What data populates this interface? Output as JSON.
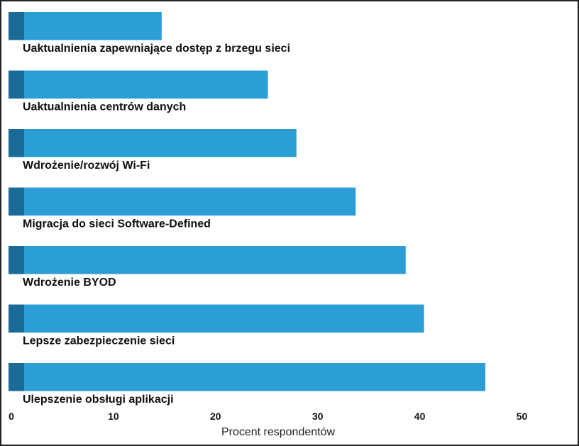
{
  "chart_data": {
    "type": "bar",
    "orientation": "horizontal",
    "categories": [
      "Uaktualnienia zapewniające dostęp z brzegu sieci",
      "Uaktualnienia centrów danych",
      "Wdrożenie/rozwój Wi-Fi",
      "Migracja do sieci Software-Defined",
      "Wdrożenie BYOD",
      "Lepsze zabezpieczenie sieci",
      "Ulepszenie obsługi aplikacji"
    ],
    "values": [
      15,
      25.4,
      28.2,
      34,
      38.9,
      40.7,
      46.7
    ],
    "xlabel": "Procent respondentów",
    "ylabel": "",
    "xlim": [
      0,
      55
    ],
    "xticks": [
      0,
      10,
      20,
      30,
      40,
      50
    ],
    "grid": false,
    "colors": {
      "bar": "#2b9ed6",
      "bar_accent": "#1a6b96"
    }
  }
}
